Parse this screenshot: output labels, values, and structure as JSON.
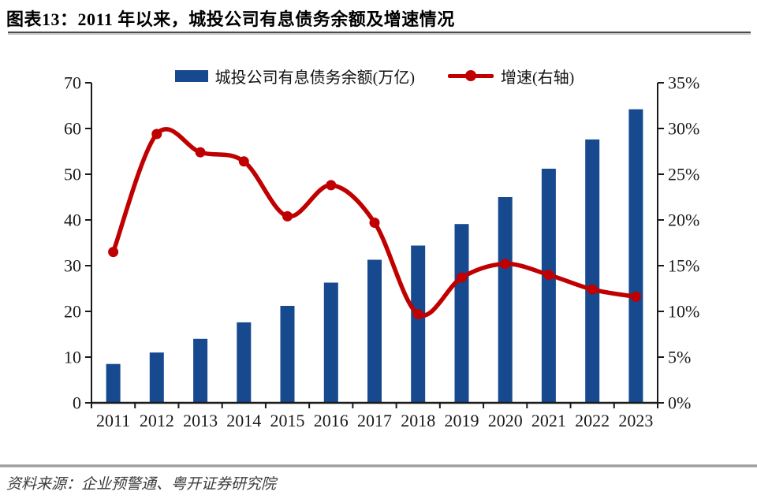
{
  "header": {
    "title": "图表13：2011 年以来，城投公司有息债务余额及增速情况"
  },
  "chart_data": {
    "type": "combo_bar_line_dual_axis",
    "title": "城投公司有息债务余额及增速情况",
    "categories": [
      "2011",
      "2012",
      "2013",
      "2014",
      "2015",
      "2016",
      "2017",
      "2018",
      "2019",
      "2020",
      "2021",
      "2022",
      "2023"
    ],
    "series": [
      {
        "name": "城投公司有息债务余额(万亿)",
        "type": "bar",
        "axis": "left",
        "color": "#17498F",
        "values": [
          8.5,
          11.0,
          14.0,
          17.6,
          21.2,
          26.3,
          31.3,
          34.4,
          39.1,
          45.0,
          51.2,
          57.6,
          64.2
        ]
      },
      {
        "name": "增速(右轴)",
        "type": "line",
        "axis": "right",
        "color": "#C00000",
        "values": [
          16.5,
          29.4,
          27.4,
          26.4,
          20.4,
          23.8,
          19.7,
          9.7,
          13.7,
          15.2,
          14.0,
          12.4,
          11.6
        ]
      }
    ],
    "left_axis": {
      "min": 0,
      "max": 70,
      "step": 10,
      "tick_labels": [
        "0",
        "10",
        "20",
        "30",
        "40",
        "50",
        "60",
        "70"
      ]
    },
    "right_axis": {
      "min": 0,
      "max": 35,
      "step": 5,
      "unit": "%",
      "tick_labels": [
        "0%",
        "5%",
        "10%",
        "15%",
        "20%",
        "25%",
        "30%",
        "35%"
      ]
    },
    "grid": "off",
    "legend_position": "top-center"
  },
  "footer": {
    "source": "资料来源：企业预警通、粤开证券研究院"
  },
  "colors": {
    "bar": "#17498F",
    "line": "#C00000",
    "axis": "#1a1a1a",
    "title_rule": "#4d4d4d",
    "footer_rule": "#9a9a9a"
  }
}
